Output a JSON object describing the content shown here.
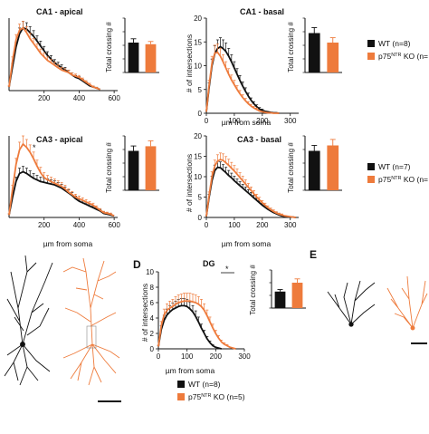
{
  "colors": {
    "wt": "#111111",
    "ko": "#ee7b3c",
    "axis": "#111111"
  },
  "legend_top": {
    "wt": "WT (n=8)",
    "ko_prefix": "p75",
    "ko_sup": "NTR",
    "ko_suffix": " KO (n="
  },
  "legend_mid": {
    "wt": "WT (n=7)",
    "ko_prefix": "p75",
    "ko_sup": "NTR",
    "ko_suffix": " KO (n="
  },
  "legend_dg": {
    "wt": "WT (n=8)",
    "ko_prefix": "p75",
    "ko_sup": "NTR",
    "ko_suffix": " KO (n=5)"
  },
  "panel_letters": {
    "d": "D",
    "e": "E"
  },
  "chart_data": [
    {
      "id": "ca1_apical",
      "type": "line",
      "title": "CA1 - apical",
      "xlabel": "",
      "ylabel": "",
      "x_ticks": [
        "200",
        "400",
        "600"
      ],
      "y_ticks": [],
      "xlim": [
        0,
        620
      ],
      "ylim": [
        0,
        6
      ],
      "series": [
        {
          "name": "WT",
          "x": [
            0,
            20,
            40,
            60,
            80,
            100,
            120,
            140,
            160,
            180,
            200,
            220,
            240,
            260,
            280,
            300,
            320,
            340,
            360,
            380,
            400,
            420,
            440,
            460,
            480,
            500,
            520
          ],
          "values": [
            0.3,
            2.0,
            3.6,
            4.7,
            5.2,
            5.1,
            4.8,
            4.5,
            4.1,
            3.7,
            3.3,
            2.9,
            2.6,
            2.3,
            2.1,
            1.9,
            1.7,
            1.5,
            1.3,
            1.1,
            1.0,
            0.8,
            0.6,
            0.4,
            0.3,
            0.2,
            0.1
          ]
        },
        {
          "name": "p75NTR KO",
          "x": [
            0,
            20,
            40,
            60,
            80,
            100,
            120,
            140,
            160,
            180,
            200,
            220,
            240,
            260,
            280,
            300,
            320,
            340,
            360,
            380,
            400,
            420,
            440,
            460,
            480,
            500,
            520
          ],
          "values": [
            0.3,
            2.5,
            4.2,
            5.0,
            5.2,
            4.8,
            4.3,
            3.9,
            3.5,
            3.1,
            2.8,
            2.5,
            2.3,
            2.1,
            1.9,
            1.7,
            1.6,
            1.5,
            1.3,
            1.2,
            1.1,
            0.9,
            0.7,
            0.5,
            0.3,
            0.2,
            0.1
          ]
        }
      ]
    },
    {
      "id": "ca1_apical_bar",
      "type": "bar",
      "categories": [
        "WT",
        "p75NTR KO"
      ],
      "values": [
        110,
        104
      ],
      "errors": [
        14,
        10
      ],
      "ylabel": "Total crossing #",
      "ylim": [
        0,
        200
      ],
      "y_ticks": [
        "0",
        "50",
        "100",
        "150",
        "200"
      ]
    },
    {
      "id": "ca1_basal",
      "type": "line",
      "title": "CA1 - basal",
      "xlabel": "µm from soma",
      "ylabel": "# of intersections",
      "x_ticks": [
        "0",
        "100",
        "200",
        "300"
      ],
      "y_ticks": [
        "0",
        "5",
        "10",
        "15",
        "20"
      ],
      "xlim": [
        0,
        330
      ],
      "ylim": [
        0,
        20
      ],
      "series": [
        {
          "name": "WT",
          "x": [
            0,
            10,
            20,
            30,
            40,
            50,
            60,
            70,
            80,
            90,
            100,
            110,
            120,
            130,
            140,
            150,
            160,
            170,
            180,
            190,
            200,
            210,
            220,
            230,
            240,
            250,
            260
          ],
          "values": [
            0.3,
            5.5,
            10.0,
            12.5,
            13.6,
            14.0,
            13.6,
            13.0,
            12.0,
            10.8,
            9.5,
            8.2,
            6.9,
            5.7,
            4.6,
            3.6,
            2.7,
            2.0,
            1.4,
            0.9,
            0.6,
            0.4,
            0.3,
            0.2,
            0.1,
            0.1,
            0.0
          ]
        },
        {
          "name": "p75NTR KO",
          "x": [
            0,
            10,
            20,
            30,
            40,
            50,
            60,
            70,
            80,
            90,
            100,
            110,
            120,
            130,
            140,
            150,
            160,
            170,
            180,
            190,
            200,
            210,
            220,
            230,
            240,
            250,
            260
          ],
          "values": [
            0.3,
            6.0,
            10.5,
            12.6,
            12.8,
            12.0,
            10.8,
            9.5,
            8.2,
            7.0,
            6.0,
            5.0,
            4.1,
            3.3,
            2.6,
            2.0,
            1.5,
            1.1,
            0.8,
            0.5,
            0.3,
            0.2,
            0.1,
            0.1,
            0.0,
            0.0,
            0.0
          ]
        }
      ]
    },
    {
      "id": "ca1_basal_bar",
      "type": "bar",
      "categories": [
        "WT",
        "p75NTR KO"
      ],
      "values": [
        145,
        110
      ],
      "errors": [
        20,
        18
      ],
      "ylabel": "Total crossing #",
      "ylim": [
        0,
        200
      ],
      "y_ticks": [
        "0",
        "50",
        "100",
        "150",
        "200"
      ]
    },
    {
      "id": "ca3_apical",
      "type": "line",
      "title": "CA3 - apical",
      "xlabel": "µm from soma",
      "ylabel": "",
      "x_ticks": [
        "200",
        "400",
        "600"
      ],
      "y_ticks": [],
      "xlim": [
        0,
        620
      ],
      "ylim": [
        0,
        10
      ],
      "annotation": "*",
      "series": [
        {
          "name": "WT",
          "x": [
            0,
            20,
            40,
            60,
            80,
            100,
            120,
            140,
            160,
            180,
            200,
            220,
            240,
            260,
            280,
            300,
            320,
            340,
            360,
            380,
            400,
            420,
            440,
            460,
            480,
            500,
            520,
            540,
            560,
            580,
            600
          ],
          "values": [
            0.3,
            2.5,
            4.4,
            5.4,
            5.6,
            5.4,
            5.1,
            4.8,
            4.6,
            4.4,
            4.3,
            4.2,
            4.1,
            4.0,
            3.8,
            3.6,
            3.3,
            3.0,
            2.7,
            2.3,
            2.0,
            1.8,
            1.6,
            1.4,
            1.2,
            1.0,
            0.8,
            0.5,
            0.4,
            0.3,
            0.2
          ]
        },
        {
          "name": "p75NTR KO",
          "x": [
            0,
            20,
            40,
            60,
            80,
            100,
            120,
            140,
            160,
            180,
            200,
            220,
            240,
            260,
            280,
            300,
            320,
            340,
            360,
            380,
            400,
            420,
            440,
            460,
            480,
            500,
            520,
            540,
            560,
            580,
            600
          ],
          "values": [
            0.3,
            3.5,
            6.5,
            8.3,
            9.0,
            8.6,
            8.0,
            7.2,
            6.3,
            5.5,
            4.9,
            4.6,
            4.4,
            4.2,
            4.0,
            3.8,
            3.5,
            3.1,
            2.8,
            2.5,
            2.3,
            2.1,
            1.9,
            1.7,
            1.5,
            1.2,
            0.9,
            0.6,
            0.5,
            0.4,
            0.2
          ]
        }
      ]
    },
    {
      "id": "ca3_apical_bar",
      "type": "bar",
      "categories": [
        "WT",
        "p75NTR KO"
      ],
      "values": [
        145,
        162
      ],
      "errors": [
        18,
        20
      ],
      "ylabel": "Total crossing #",
      "ylim": [
        0,
        200
      ],
      "y_ticks": [
        "0",
        "50",
        "100",
        "150",
        "200"
      ]
    },
    {
      "id": "ca3_basal",
      "type": "line",
      "title": "CA3 - basal",
      "xlabel": "µm from soma",
      "ylabel": "# of intersections",
      "x_ticks": [
        "0",
        "100",
        "200",
        "300"
      ],
      "y_ticks": [
        "0",
        "5",
        "10",
        "15",
        "20"
      ],
      "xlim": [
        0,
        330
      ],
      "ylim": [
        0,
        20
      ],
      "series": [
        {
          "name": "WT",
          "x": [
            0,
            10,
            20,
            30,
            40,
            50,
            60,
            70,
            80,
            90,
            100,
            110,
            120,
            130,
            140,
            150,
            160,
            170,
            180,
            190,
            200,
            210,
            220,
            230,
            240,
            250,
            260,
            270,
            280,
            290,
            300,
            310,
            320
          ],
          "values": [
            0.3,
            5.0,
            9.0,
            11.5,
            12.3,
            12.2,
            11.6,
            11.0,
            10.3,
            9.7,
            9.0,
            8.4,
            7.8,
            7.2,
            6.6,
            6.0,
            5.4,
            4.8,
            4.2,
            3.6,
            3.0,
            2.5,
            2.0,
            1.6,
            1.2,
            0.9,
            0.6,
            0.4,
            0.3,
            0.2,
            0.1,
            0.1,
            0.0
          ]
        },
        {
          "name": "p75NTR KO",
          "x": [
            0,
            10,
            20,
            30,
            40,
            50,
            60,
            70,
            80,
            90,
            100,
            110,
            120,
            130,
            140,
            150,
            160,
            170,
            180,
            190,
            200,
            210,
            220,
            230,
            240,
            250,
            260,
            270,
            280,
            290,
            300,
            310,
            320
          ],
          "values": [
            0.3,
            5.5,
            10.0,
            12.6,
            13.8,
            14.2,
            14.0,
            13.4,
            12.8,
            12.1,
            11.4,
            10.6,
            9.8,
            9.0,
            8.2,
            7.4,
            6.6,
            5.8,
            5.0,
            4.3,
            3.6,
            3.0,
            2.4,
            1.9,
            1.5,
            1.1,
            0.8,
            0.6,
            0.4,
            0.3,
            0.2,
            0.1,
            0.0
          ]
        }
      ]
    },
    {
      "id": "ca3_basal_bar",
      "type": "bar",
      "categories": [
        "WT",
        "p75NTR KO"
      ],
      "values": [
        145,
        165
      ],
      "errors": [
        20,
        22
      ],
      "ylabel": "Total crossing #",
      "ylim": [
        0,
        200
      ],
      "y_ticks": [
        "0",
        "50",
        "100",
        "150",
        "200"
      ]
    },
    {
      "id": "dg",
      "type": "line",
      "title": "DG",
      "xlabel": "µm from soma",
      "ylabel": "# of intersections",
      "x_ticks": [
        "0",
        "100",
        "200",
        "300"
      ],
      "y_ticks": [
        "0",
        "2",
        "4",
        "6",
        "8",
        "10"
      ],
      "xlim": [
        0,
        300
      ],
      "ylim": [
        0,
        10
      ],
      "annotation": "*",
      "series": [
        {
          "name": "WT",
          "x": [
            0,
            10,
            20,
            30,
            40,
            50,
            60,
            70,
            80,
            90,
            100,
            110,
            120,
            130,
            140,
            150,
            160,
            170,
            180,
            190,
            200,
            210,
            220
          ],
          "values": [
            0.3,
            2.5,
            3.7,
            4.4,
            4.8,
            5.1,
            5.3,
            5.5,
            5.6,
            5.6,
            5.5,
            5.2,
            4.8,
            4.2,
            3.5,
            2.7,
            2.0,
            1.3,
            0.8,
            0.4,
            0.2,
            0.1,
            0.0
          ]
        },
        {
          "name": "p75NTR KO",
          "x": [
            0,
            10,
            20,
            30,
            40,
            50,
            60,
            70,
            80,
            90,
            100,
            110,
            120,
            130,
            140,
            150,
            160,
            170,
            180,
            190,
            200,
            210,
            220,
            230,
            240,
            250,
            260,
            270
          ],
          "values": [
            0.3,
            3.0,
            4.4,
            5.0,
            5.3,
            5.5,
            5.8,
            6.0,
            6.1,
            6.2,
            6.2,
            6.2,
            6.1,
            6.0,
            5.8,
            5.5,
            5.0,
            4.3,
            3.5,
            2.7,
            2.0,
            1.4,
            0.9,
            0.6,
            0.4,
            0.2,
            0.1,
            0.0
          ]
        }
      ]
    },
    {
      "id": "dg_bar",
      "type": "bar",
      "categories": [
        "WT",
        "p75NTR KO"
      ],
      "values": [
        65,
        100
      ],
      "errors": [
        8,
        15
      ],
      "ylabel": "Total crossing #",
      "ylim": [
        0,
        150
      ],
      "y_ticks": [
        "0",
        "50",
        "100",
        "150"
      ]
    }
  ]
}
